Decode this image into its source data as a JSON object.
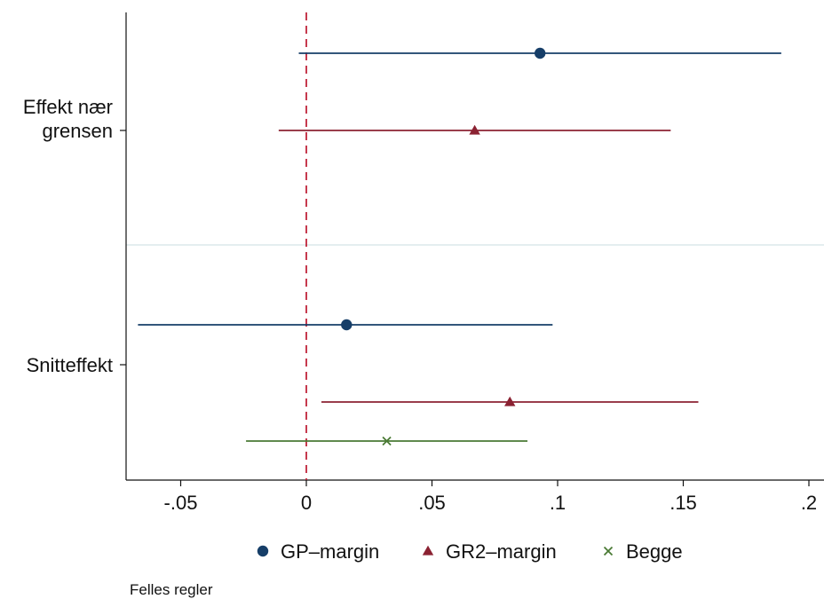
{
  "chart_data": {
    "type": "coefficient-plot",
    "orientation": "horizontal",
    "xlim": [
      -0.07,
      0.205
    ],
    "xticks": [
      {
        "value": -0.05,
        "label": "-.05"
      },
      {
        "value": 0,
        "label": "0"
      },
      {
        "value": 0.05,
        "label": ".05"
      },
      {
        "value": 0.1,
        "label": ".1"
      },
      {
        "value": 0.15,
        "label": ".15"
      },
      {
        "value": 0.2,
        "label": ".2"
      }
    ],
    "reference_line": {
      "x": 0,
      "style": "dashed",
      "color": "#c0243a"
    },
    "group_separator": true,
    "categories": [
      {
        "label_lines": [
          "Effekt nær",
          "grensen"
        ]
      },
      {
        "label_lines": [
          "Snitteffekt"
        ]
      }
    ],
    "series": [
      {
        "name": "GP–margin",
        "marker": "circle",
        "color": "#163e68",
        "points": [
          {
            "category": 0,
            "estimate": 0.093,
            "ci": [
              -0.003,
              0.189
            ]
          },
          {
            "category": 1,
            "estimate": 0.016,
            "ci": [
              -0.067,
              0.098
            ]
          }
        ]
      },
      {
        "name": "GR2–margin",
        "marker": "triangle",
        "color": "#8b2232",
        "points": [
          {
            "category": 0,
            "estimate": 0.067,
            "ci": [
              -0.011,
              0.145
            ]
          },
          {
            "category": 1,
            "estimate": 0.081,
            "ci": [
              0.006,
              0.156
            ]
          }
        ]
      },
      {
        "name": "Begge",
        "marker": "x",
        "color": "#4a7a34",
        "points": [
          {
            "category": 1,
            "estimate": 0.032,
            "ci": [
              -0.024,
              0.088
            ]
          }
        ]
      }
    ],
    "legend_position": "bottom",
    "note": "Felles regler"
  }
}
